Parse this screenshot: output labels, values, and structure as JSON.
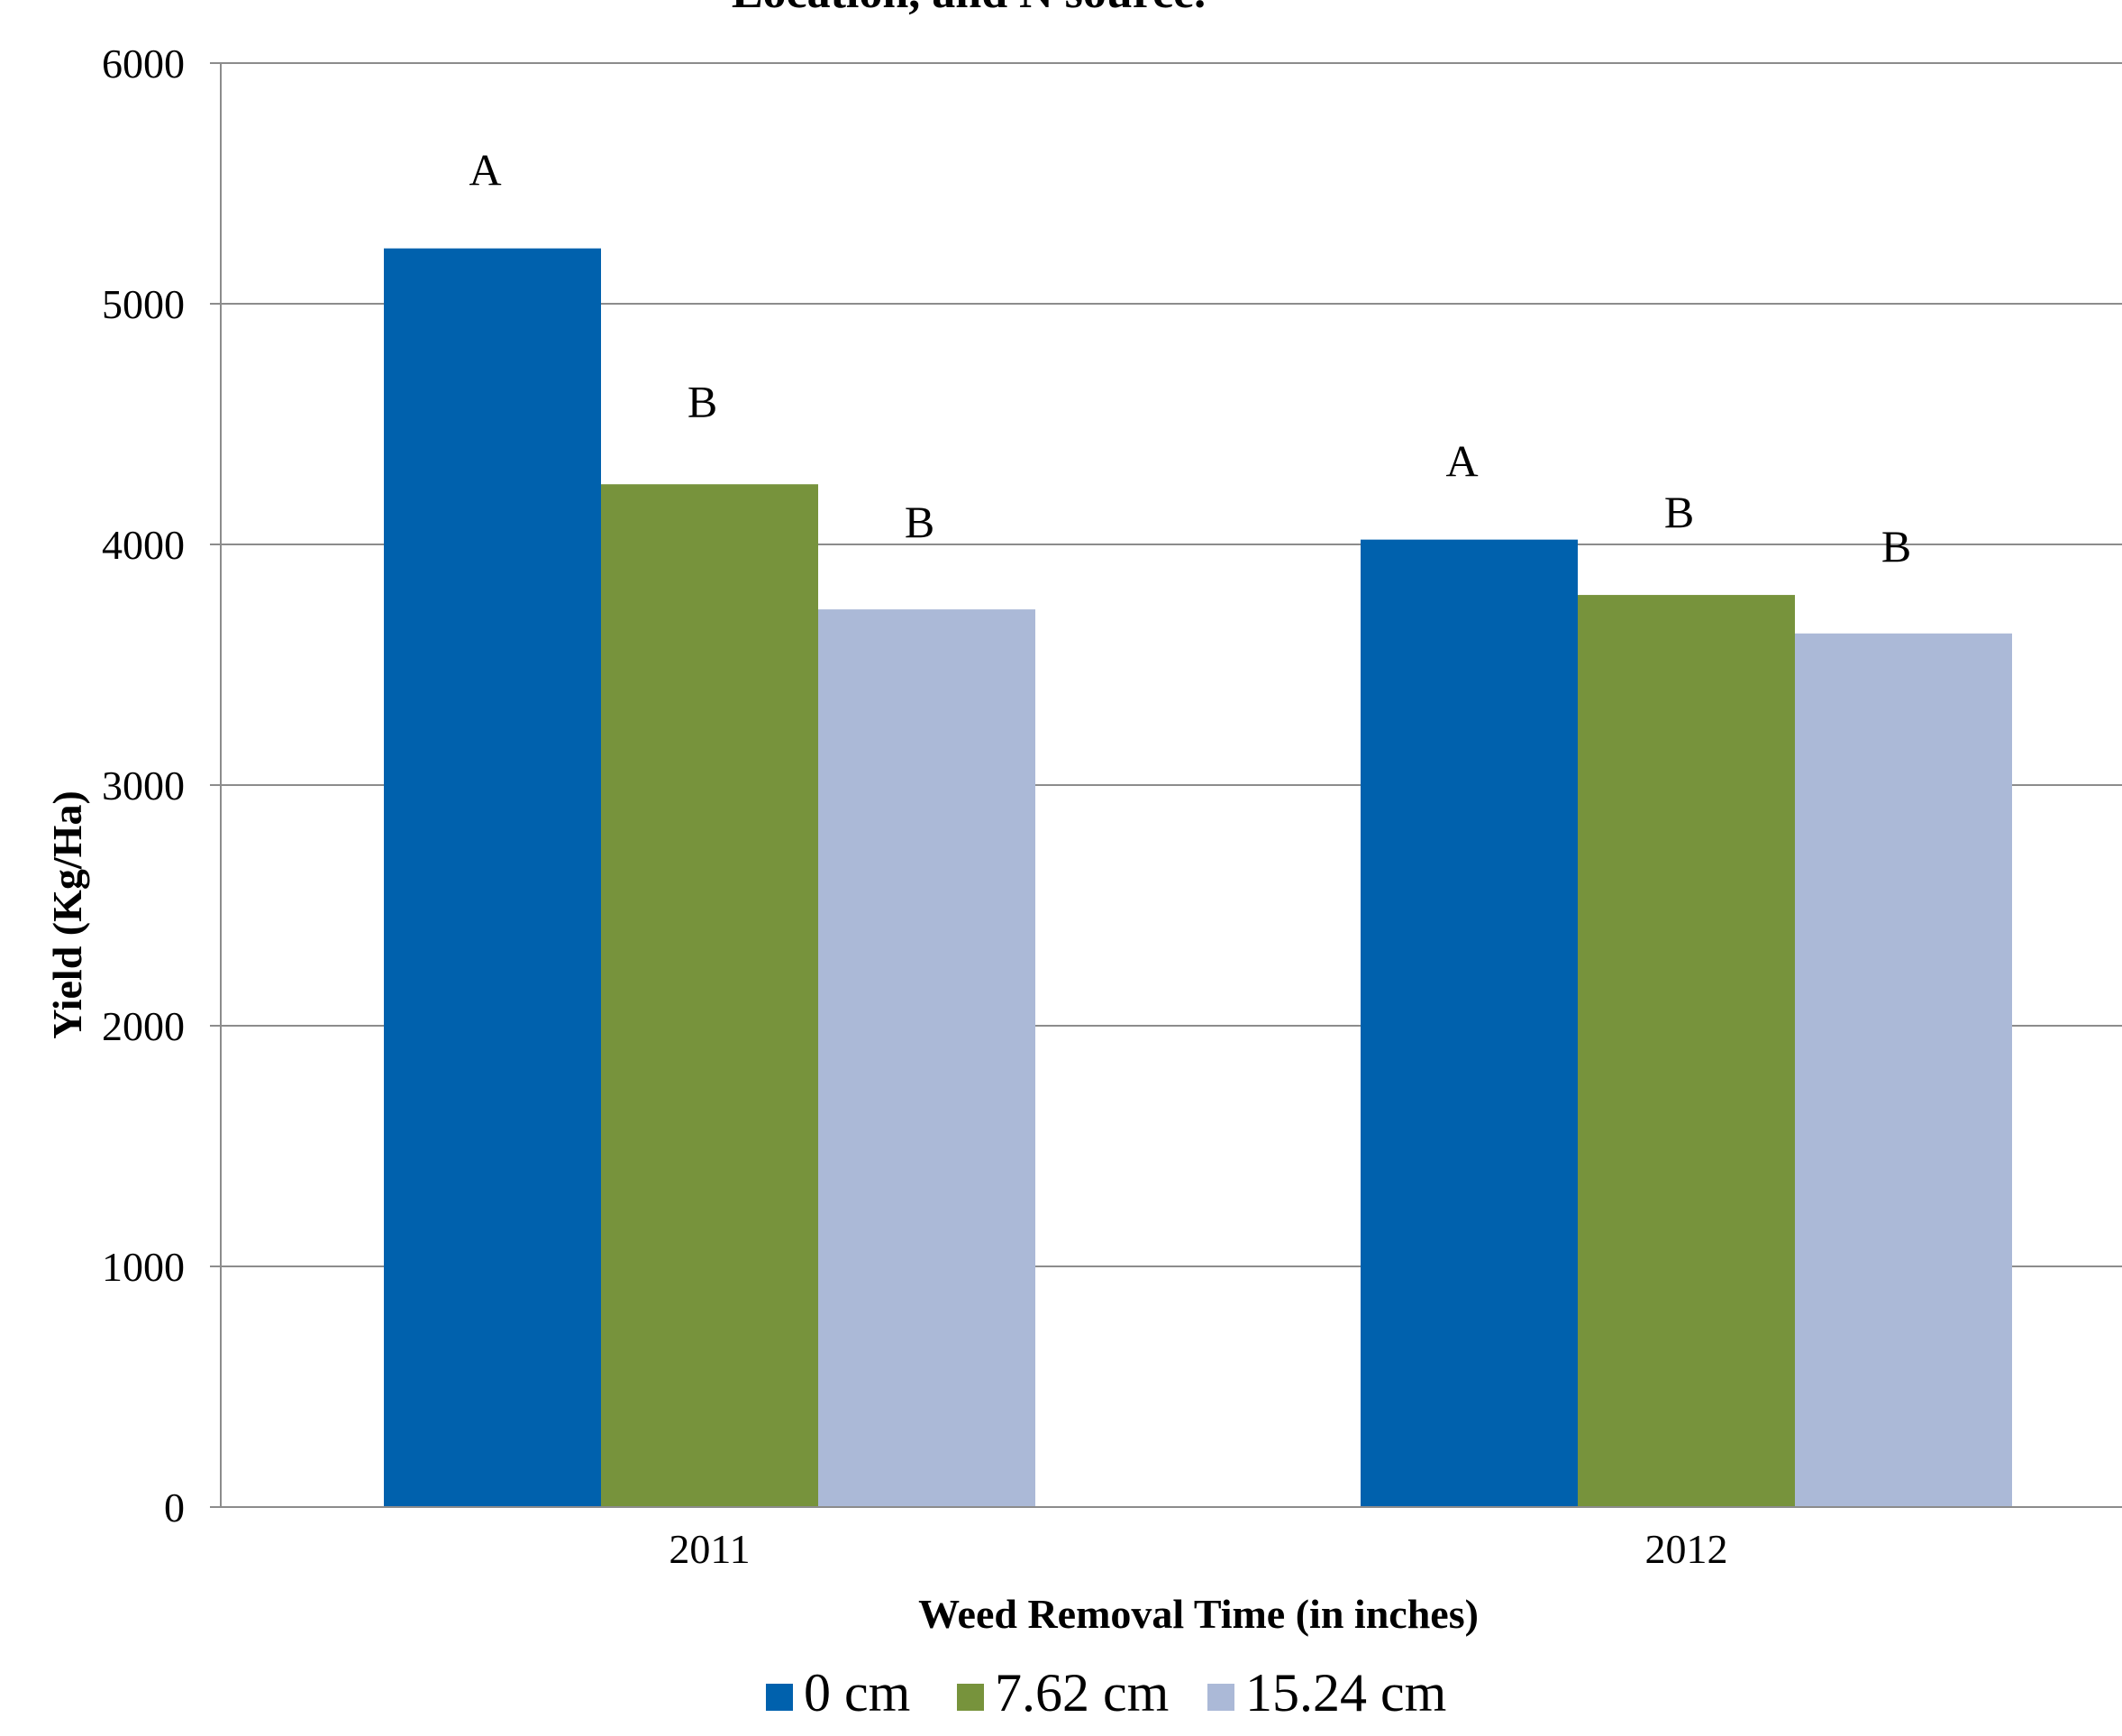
{
  "chart_data": {
    "type": "bar",
    "title": "Location, and N source.",
    "xlabel": "Weed Removal Time (in inches)",
    "ylabel": "Yield (Kg/Ha)",
    "ylim": [
      0,
      6000
    ],
    "yticks": [
      0,
      1000,
      2000,
      3000,
      4000,
      5000,
      6000
    ],
    "grid": true,
    "legend_position": "bottom",
    "categories": [
      "2011",
      "2012"
    ],
    "series": [
      {
        "name": "0 cm",
        "color": "#0061AD",
        "values": [
          5230,
          4020
        ],
        "labels": [
          "A",
          "A"
        ]
      },
      {
        "name": "7.62 cm",
        "color": "#77933C",
        "values": [
          4250,
          3790
        ],
        "labels": [
          "B",
          "B"
        ]
      },
      {
        "name": "15.24 cm",
        "color": "#ABB9D7",
        "values": [
          3730,
          3630
        ],
        "labels": [
          "B",
          "B"
        ]
      }
    ]
  }
}
